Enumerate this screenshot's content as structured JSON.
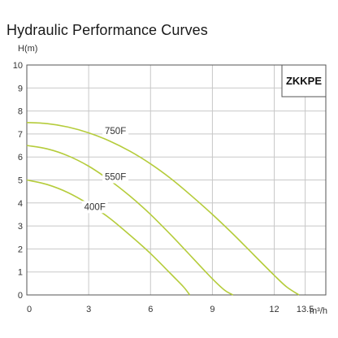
{
  "chart_data": {
    "type": "line",
    "title": "Hydraulic Performance Curves",
    "ylabel": "H(m)",
    "xlabel": "m³/h",
    "xlim": [
      0,
      14.5
    ],
    "ylim": [
      0,
      10
    ],
    "x_ticks": [
      0,
      3,
      6,
      9,
      12,
      13.5
    ],
    "x_tick_labels": [
      "0",
      "3",
      "6",
      "9",
      "12",
      "13.5"
    ],
    "y_ticks": [
      0,
      1,
      2,
      3,
      4,
      5,
      6,
      7,
      8,
      9,
      10
    ],
    "grid": true,
    "model_label": "ZKKPE",
    "curve_color": "#b5cc3b",
    "series": [
      {
        "name": "750F",
        "x": [
          0,
          1,
          2,
          3,
          4,
          5,
          6,
          7,
          8,
          9,
          10,
          11,
          12,
          12.6,
          13.2
        ],
        "y": [
          7.5,
          7.45,
          7.3,
          7.05,
          6.7,
          6.25,
          5.7,
          5.05,
          4.3,
          3.5,
          2.65,
          1.75,
          0.85,
          0.35,
          0.0
        ],
        "label_at": [
          4.3,
          7.0
        ]
      },
      {
        "name": "550F",
        "x": [
          0,
          1,
          2,
          3,
          4,
          5,
          6,
          7,
          8,
          9,
          9.6,
          10.0
        ],
        "y": [
          6.5,
          6.35,
          6.05,
          5.6,
          5.0,
          4.3,
          3.5,
          2.6,
          1.65,
          0.7,
          0.2,
          0.0
        ],
        "label_at": [
          4.3,
          5.0
        ]
      },
      {
        "name": "400F",
        "x": [
          0,
          1,
          2,
          3,
          4,
          5,
          6,
          7,
          7.6,
          7.9
        ],
        "y": [
          5.0,
          4.8,
          4.45,
          3.95,
          3.35,
          2.6,
          1.8,
          0.9,
          0.35,
          0.0
        ],
        "label_at": [
          3.3,
          3.7
        ]
      }
    ]
  }
}
